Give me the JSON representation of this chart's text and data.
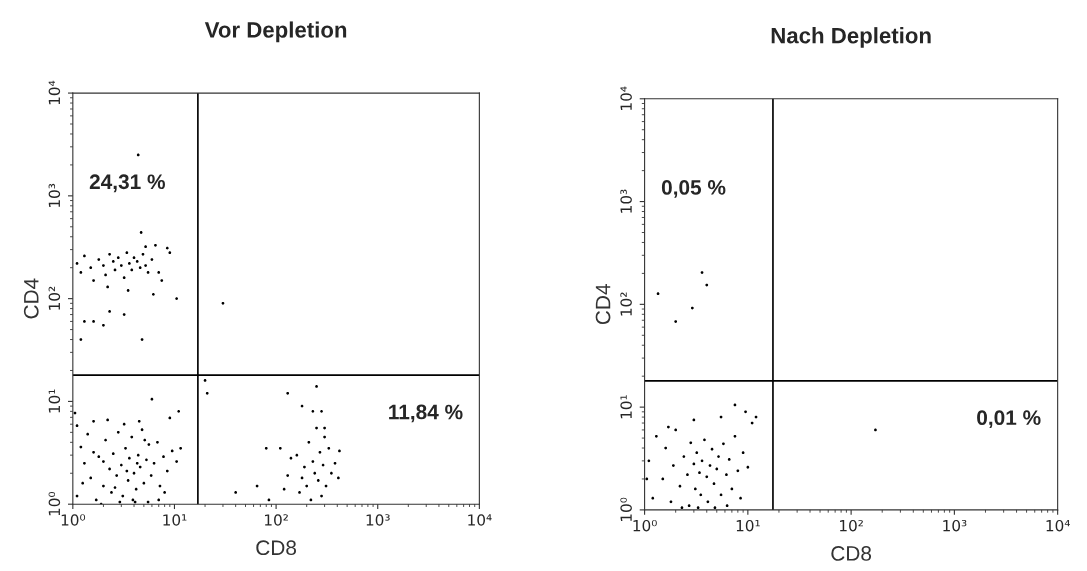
{
  "chart_data": [
    {
      "type": "scatter",
      "title": "Vor Depletion",
      "xlabel": "CD8",
      "ylabel": "CD4",
      "log": "xy",
      "grid": false,
      "marker": "circle",
      "xlim": [
        1,
        10000
      ],
      "ylim": [
        1,
        10000
      ],
      "xticks": [
        {
          "value": 1,
          "label": "10⁰"
        },
        {
          "value": 10,
          "label": "10¹"
        },
        {
          "value": 100,
          "label": "10²"
        },
        {
          "value": 1000,
          "label": "10³"
        },
        {
          "value": 10000,
          "label": "10⁴"
        }
      ],
      "yticks": [
        {
          "value": 1,
          "label": "10⁰"
        },
        {
          "value": 10,
          "label": "10¹"
        },
        {
          "value": 100,
          "label": "10²"
        },
        {
          "value": 1000,
          "label": "10³"
        },
        {
          "value": 10000,
          "label": "10⁴"
        }
      ],
      "ref_lines": [
        {
          "axis": "x",
          "value": 17,
          "color": "#000000"
        },
        {
          "axis": "y",
          "value": 18,
          "color": "#000000"
        }
      ],
      "annotations": [
        "24,31 %",
        "11,84 %"
      ],
      "series": [
        {
          "color": "#000000",
          "x": [
            1.1,
            1.3,
            1.5,
            1.2,
            1.7,
            1.8,
            2.0,
            2.1,
            2.3,
            2.4,
            2.5,
            2.7,
            2.8,
            3.0,
            3.1,
            3.3,
            3.5,
            3.6,
            3.8,
            4.0,
            4.2,
            4.4,
            4.6,
            4.8,
            5.0,
            5.3,
            5.6,
            5.9,
            6.3,
            6.8,
            7.2,
            7.8,
            8.5,
            9.5,
            10.5,
            11.5,
            1.1,
            1.4,
            1.6,
            2.2,
            3.2,
            4.5,
            6.0,
            9.0,
            11,
            1.05,
            1.9,
            2.9,
            4.1,
            5.5,
            7.0,
            1.25,
            2.6,
            3.4,
            4.3,
            2.0,
            1.6,
            5.1,
            3.9,
            8.0
          ],
          "values": [
            1.2,
            2.5,
            1.8,
            3.6,
            1.1,
            2.9,
            1.5,
            4.2,
            2.2,
            1.3,
            3.1,
            1.9,
            5.0,
            2.4,
            1.2,
            3.5,
            1.7,
            2.8,
            4.5,
            2.0,
            1.4,
            3.0,
            2.3,
            5.3,
            1.6,
            2.7,
            3.8,
            1.9,
            2.5,
            4.0,
            1.5,
            2.9,
            2.1,
            3.3,
            2.6,
            3.5,
            5.8,
            4.8,
            6.4,
            6.6,
            6.0,
            6.4,
            10.5,
            6.9,
            8.0,
            7.7,
            1.0,
            1.05,
            1.05,
            1.05,
            1.1,
            1.6,
            1.45,
            2.1,
            2.5,
            2.6,
            3.2,
            4.2,
            1.1,
            1.3
          ]
        },
        {
          "color": "#000000",
          "x": [
            1.1,
            1.2,
            1.3,
            1.5,
            1.6,
            1.8,
            2.0,
            2.1,
            2.3,
            2.5,
            2.6,
            2.8,
            3.0,
            3.2,
            3.4,
            3.6,
            3.8,
            4.0,
            4.3,
            4.6,
            4.9,
            5.2,
            5.5,
            6.0,
            6.5,
            7.0,
            7.5,
            8.5,
            9.0,
            10.5,
            1.3,
            1.6,
            2.0,
            2.3,
            3.2,
            4.8,
            1.2,
            5.2,
            4.7,
            3.5,
            2.2,
            6.2,
            4.4
          ],
          "values": [
            220,
            180,
            260,
            200,
            150,
            240,
            210,
            170,
            270,
            230,
            190,
            250,
            210,
            160,
            280,
            220,
            190,
            250,
            230,
            200,
            270,
            210,
            180,
            240,
            330,
            180,
            150,
            310,
            280,
            100,
            60,
            60,
            55,
            75,
            70,
            40,
            40,
            320,
            440,
            120,
            130,
            110,
            2500
          ]
        },
        {
          "color": "#000000",
          "x": [
            80,
            110,
            65,
            40,
            85,
            120,
            130,
            140,
            160,
            170,
            180,
            190,
            200,
            210,
            220,
            230,
            240,
            250,
            260,
            270,
            280,
            290,
            300,
            310,
            330,
            350,
            380,
            410,
            420,
            130,
            180,
            250,
            230,
            280,
            300,
            20,
            21,
            30
          ],
          "values": [
            3.5,
            3.5,
            1.5,
            1.3,
            1.1,
            1.4,
            1.9,
            2.8,
            3.0,
            1.3,
            1.8,
            2.3,
            1.5,
            4.0,
            1.1,
            2.6,
            2.0,
            5.5,
            1.7,
            3.2,
            1.2,
            2.4,
            4.5,
            1.5,
            3.5,
            2.0,
            2.5,
            1.8,
            3.3,
            12,
            9,
            14,
            8,
            8,
            5.5,
            16,
            12,
            90
          ]
        }
      ]
    },
    {
      "type": "scatter",
      "title": "Nach Depletion",
      "xlabel": "CD8",
      "ylabel": "CD4",
      "log": "xy",
      "grid": false,
      "marker": "circle",
      "xlim": [
        1,
        10000
      ],
      "ylim": [
        1,
        10000
      ],
      "xticks": [
        {
          "value": 1,
          "label": "10⁰"
        },
        {
          "value": 10,
          "label": "10¹"
        },
        {
          "value": 100,
          "label": "10²"
        },
        {
          "value": 1000,
          "label": "10³"
        },
        {
          "value": 10000,
          "label": "10⁴"
        }
      ],
      "yticks": [
        {
          "value": 1,
          "label": "10⁰"
        },
        {
          "value": 10,
          "label": "10¹"
        },
        {
          "value": 100,
          "label": "10²"
        },
        {
          "value": 1000,
          "label": "10³"
        },
        {
          "value": 10000,
          "label": "10⁴"
        }
      ],
      "ref_lines": [
        {
          "axis": "x",
          "value": 17.5,
          "color": "#000000"
        },
        {
          "axis": "y",
          "value": 18,
          "color": "#000000"
        }
      ],
      "annotations": [
        "0,05 %",
        "0,01 %"
      ],
      "series": [
        {
          "color": "#000000",
          "x": [
            1.1,
            1.2,
            1.3,
            1.5,
            1.6,
            1.8,
            1.9,
            2.0,
            2.2,
            2.4,
            2.6,
            2.7,
            2.8,
            3.0,
            3.1,
            3.2,
            3.4,
            3.5,
            3.6,
            3.8,
            4.0,
            4.1,
            4.3,
            4.5,
            4.7,
            5.0,
            5.2,
            5.5,
            5.8,
            6.2,
            6.6,
            7.0,
            7.5,
            8.0,
            8.5,
            9.0,
            10.0,
            11,
            12,
            9.5,
            7.5,
            5.5,
            3.0,
            1.7,
            1.05,
            3.3,
            4.8,
            6.3,
            2.3
          ],
          "values": [
            3.0,
            1.3,
            5.2,
            2.0,
            4.0,
            1.2,
            2.7,
            6.0,
            1.7,
            3.3,
            2.2,
            1.1,
            4.5,
            2.8,
            1.6,
            3.6,
            2.3,
            1.4,
            3.0,
            4.8,
            2.1,
            1.2,
            2.7,
            3.9,
            1.8,
            2.5,
            3.3,
            1.4,
            4.4,
            2.2,
            3.1,
            1.6,
            5.2,
            2.4,
            1.3,
            3.6,
            2.6,
            7.0,
            8.0,
            9.0,
            10.5,
            8.0,
            7.5,
            6.4,
            2.0,
            1.05,
            1.05,
            1.1,
            1.05
          ]
        },
        {
          "color": "#000000",
          "x": [
            1.35,
            3.6,
            4.0,
            2.9,
            2.0,
            172
          ],
          "values": [
            127,
            204,
            154,
            92,
            68,
            6.0
          ]
        }
      ]
    }
  ]
}
